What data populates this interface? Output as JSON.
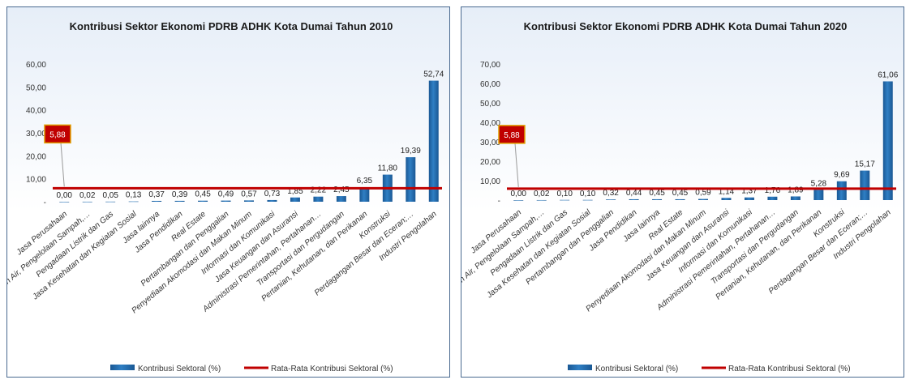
{
  "chart_data": [
    {
      "type": "bar",
      "title": "Kontribusi Sektor Ekonomi PDRB ADHK Kota Dumai Tahun 2010",
      "xlabel": "",
      "ylabel": "",
      "ylim": [
        0,
        60
      ],
      "yticks": [
        "-",
        "10,00",
        "20,00",
        "30,00",
        "40,00",
        "50,00",
        "60,00"
      ],
      "categories": [
        "Jasa Perusahaan",
        "Pengadaan Air, Pengelolaan Sampah,…",
        "Pengadaan Listrik dan Gas",
        "Jasa Kesehatan dan Kegiatan Sosial",
        "Jasa lainnya",
        "Jasa Pendidikan",
        "Real Estate",
        "Pertambangan dan Penggalian",
        "Penyediaan Akomodasi dan Makan Minum",
        "Informasi dan Komunikasi",
        "Jasa Keuangan dan Asuransi",
        "Administrasi Pemerintahan, Pertahanan…",
        "Transportasi dan Pergudangan",
        "Pertanian, Kehutanan, dan Perikanan",
        "Konstruksi",
        "Perdagangan Besar dan Eceran;…",
        "Industri Pengolahan"
      ],
      "series": [
        {
          "name": "Kontribusi Sektoral (%)",
          "values": [
            0.0,
            0.02,
            0.05,
            0.13,
            0.37,
            0.39,
            0.45,
            0.49,
            0.57,
            0.73,
            1.85,
            2.22,
            2.45,
            6.35,
            11.8,
            19.39,
            52.74
          ],
          "labels": [
            "0,00",
            "0,02",
            "0,05",
            "0,13",
            "0,37",
            "0,39",
            "0,45",
            "0,49",
            "0,57",
            "0,73",
            "1,85",
            "2,22",
            "2,45",
            "6,35",
            "11,80",
            "19,39",
            "52,74"
          ]
        },
        {
          "name": "Rata-Rata Kontribusi Sektoral (%)",
          "value": 5.88,
          "label": "5,88"
        }
      ],
      "grid": false,
      "legend": "bottom",
      "colors": {
        "bar": "#2f7fc4",
        "bar_dark": "#1a5894",
        "average": "#c00000"
      }
    },
    {
      "type": "bar",
      "title": "Kontribusi Sektor Ekonomi PDRB ADHK Kota Dumai Tahun 2020",
      "xlabel": "",
      "ylabel": "",
      "ylim": [
        0,
        70
      ],
      "yticks": [
        "-",
        "10,00",
        "20,00",
        "30,00",
        "40,00",
        "50,00",
        "60,00",
        "70,00"
      ],
      "categories": [
        "Jasa Perusahaan",
        "Pengadaan Air, Pengelolaan Sampah,…",
        "Pengadaan Listrik dan Gas",
        "Jasa Kesehatan dan Kegiatan Sosial",
        "Pertambangan dan Penggalian",
        "Jasa Pendidikan",
        "Jasa lainnya",
        "Real Estate",
        "Penyediaan Akomodasi dan Makan Minum",
        "Jasa Keuangan dan Asuransi",
        "Informasi dan Komunikasi",
        "Administrasi Pemerintahan, Pertahanan…",
        "Transportasi dan Pergudangan",
        "Pertanian, Kehutanan, dan Perikanan",
        "Konstruksi",
        "Perdagangan Besar dan Eceran;…",
        "Industri Pengolahan"
      ],
      "series": [
        {
          "name": "Kontribusi Sektoral (%)",
          "values": [
            0.0,
            0.02,
            0.1,
            0.1,
            0.32,
            0.44,
            0.45,
            0.45,
            0.59,
            1.14,
            1.37,
            1.76,
            1.89,
            5.28,
            9.69,
            15.17,
            61.06
          ],
          "labels": [
            "0,00",
            "0,02",
            "0,10",
            "0,10",
            "0,32",
            "0,44",
            "0,45",
            "0,45",
            "0,59",
            "1,14",
            "1,37",
            "1,76",
            "1,89",
            "5,28",
            "9,69",
            "15,17",
            "61,06"
          ]
        },
        {
          "name": "Rata-Rata Kontribusi Sektoral (%)",
          "value": 5.88,
          "label": "5,88"
        }
      ],
      "grid": false,
      "legend": "bottom",
      "colors": {
        "bar": "#2f7fc4",
        "bar_dark": "#1a5894",
        "average": "#c00000"
      }
    }
  ]
}
